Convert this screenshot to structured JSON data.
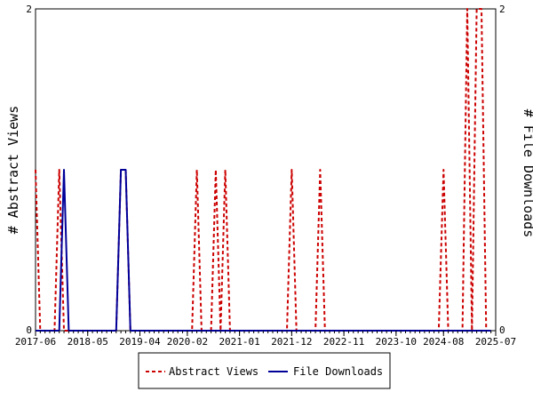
{
  "chart_data": {
    "type": "line",
    "title": "",
    "ylabel_left": "# Abstract Views",
    "ylabel_right": "# File Downloads",
    "ylim_left": [
      0,
      2
    ],
    "ylim_right": [
      0,
      2
    ],
    "left_ticks": [
      "0",
      "2"
    ],
    "right_ticks": [
      "0",
      "2"
    ],
    "x_tick_labels": [
      "2017-06",
      "2018-05",
      "2019-04",
      "2020-02",
      "2021-01",
      "2021-12",
      "2022-11",
      "2023-10",
      "2024-08",
      "2025-07"
    ],
    "x_start": "2017-06",
    "x_end": "2025-07",
    "grid": false,
    "legend_placement": "bottom",
    "colors": {
      "abstract_views": "#cc0000",
      "file_downloads": "#000099"
    },
    "series": [
      {
        "name": "Abstract Views",
        "axis": "left",
        "style": "dashed",
        "points": [
          [
            "2017-06",
            1
          ],
          [
            "2017-07",
            0
          ],
          [
            "2017-08",
            0
          ],
          [
            "2017-09",
            0
          ],
          [
            "2017-10",
            0
          ],
          [
            "2017-11",
            1
          ],
          [
            "2017-12",
            0
          ],
          [
            "2018-01",
            0
          ],
          [
            "2018-02",
            0
          ],
          [
            "2018-03",
            0
          ],
          [
            "2018-04",
            0
          ],
          [
            "2018-05",
            0
          ],
          [
            "2018-06",
            0
          ],
          [
            "2018-07",
            0
          ],
          [
            "2018-08",
            0
          ],
          [
            "2018-09",
            0
          ],
          [
            "2018-10",
            0
          ],
          [
            "2018-11",
            0
          ],
          [
            "2018-12",
            1
          ],
          [
            "2019-01",
            1
          ],
          [
            "2019-02",
            0
          ],
          [
            "2019-03",
            0
          ],
          [
            "2019-04",
            0
          ],
          [
            "2019-05",
            0
          ],
          [
            "2019-06",
            0
          ],
          [
            "2019-07",
            0
          ],
          [
            "2019-08",
            0
          ],
          [
            "2019-09",
            0
          ],
          [
            "2019-10",
            0
          ],
          [
            "2019-11",
            0
          ],
          [
            "2019-12",
            0
          ],
          [
            "2020-01",
            0
          ],
          [
            "2020-02",
            0
          ],
          [
            "2020-03",
            0
          ],
          [
            "2020-04",
            1
          ],
          [
            "2020-05",
            0
          ],
          [
            "2020-06",
            0
          ],
          [
            "2020-07",
            0
          ],
          [
            "2020-08",
            1
          ],
          [
            "2020-09",
            0
          ],
          [
            "2020-10",
            1
          ],
          [
            "2020-11",
            0
          ],
          [
            "2020-12",
            0
          ],
          [
            "2021-01",
            0
          ],
          [
            "2021-02",
            0
          ],
          [
            "2021-03",
            0
          ],
          [
            "2021-04",
            0
          ],
          [
            "2021-05",
            0
          ],
          [
            "2021-06",
            0
          ],
          [
            "2021-07",
            0
          ],
          [
            "2021-08",
            0
          ],
          [
            "2021-09",
            0
          ],
          [
            "2021-10",
            0
          ],
          [
            "2021-11",
            0
          ],
          [
            "2021-12",
            1
          ],
          [
            "2022-01",
            0
          ],
          [
            "2022-02",
            0
          ],
          [
            "2022-03",
            0
          ],
          [
            "2022-04",
            0
          ],
          [
            "2022-05",
            0
          ],
          [
            "2022-06",
            1
          ],
          [
            "2022-07",
            0
          ],
          [
            "2022-08",
            0
          ],
          [
            "2022-09",
            0
          ],
          [
            "2022-10",
            0
          ],
          [
            "2022-11",
            0
          ],
          [
            "2022-12",
            0
          ],
          [
            "2023-01",
            0
          ],
          [
            "2023-02",
            0
          ],
          [
            "2023-03",
            0
          ],
          [
            "2023-04",
            0
          ],
          [
            "2023-05",
            0
          ],
          [
            "2023-06",
            0
          ],
          [
            "2023-07",
            0
          ],
          [
            "2023-08",
            0
          ],
          [
            "2023-09",
            0
          ],
          [
            "2023-10",
            0
          ],
          [
            "2023-11",
            0
          ],
          [
            "2023-12",
            0
          ],
          [
            "2024-01",
            0
          ],
          [
            "2024-02",
            0
          ],
          [
            "2024-03",
            0
          ],
          [
            "2024-04",
            0
          ],
          [
            "2024-05",
            0
          ],
          [
            "2024-06",
            0
          ],
          [
            "2024-07",
            0
          ],
          [
            "2024-08",
            1
          ],
          [
            "2024-09",
            0
          ],
          [
            "2024-10",
            0
          ],
          [
            "2024-11",
            0
          ],
          [
            "2024-12",
            0
          ],
          [
            "2025-01",
            2
          ],
          [
            "2025-02",
            0
          ],
          [
            "2025-03",
            2
          ],
          [
            "2025-04",
            2
          ],
          [
            "2025-05",
            0
          ],
          [
            "2025-06",
            0
          ]
        ]
      },
      {
        "name": "File Downloads",
        "axis": "right",
        "style": "solid",
        "points": [
          [
            "2017-06",
            0
          ],
          [
            "2017-07",
            0
          ],
          [
            "2017-08",
            0
          ],
          [
            "2017-09",
            0
          ],
          [
            "2017-10",
            0
          ],
          [
            "2017-11",
            0
          ],
          [
            "2017-12",
            1
          ],
          [
            "2018-01",
            0
          ],
          [
            "2018-02",
            0
          ],
          [
            "2018-03",
            0
          ],
          [
            "2018-04",
            0
          ],
          [
            "2018-05",
            0
          ],
          [
            "2018-06",
            0
          ],
          [
            "2018-07",
            0
          ],
          [
            "2018-08",
            0
          ],
          [
            "2018-09",
            0
          ],
          [
            "2018-10",
            0
          ],
          [
            "2018-11",
            0
          ],
          [
            "2018-12",
            1
          ],
          [
            "2019-01",
            1
          ],
          [
            "2019-02",
            0
          ],
          [
            "2019-03",
            0
          ],
          [
            "2019-04",
            0
          ],
          [
            "2019-05",
            0
          ],
          [
            "2019-06",
            0
          ],
          [
            "2020-02",
            0
          ],
          [
            "2021-01",
            0
          ],
          [
            "2021-12",
            0
          ],
          [
            "2022-11",
            0
          ],
          [
            "2023-10",
            0
          ],
          [
            "2024-08",
            0
          ],
          [
            "2025-06",
            0
          ]
        ]
      }
    ]
  }
}
